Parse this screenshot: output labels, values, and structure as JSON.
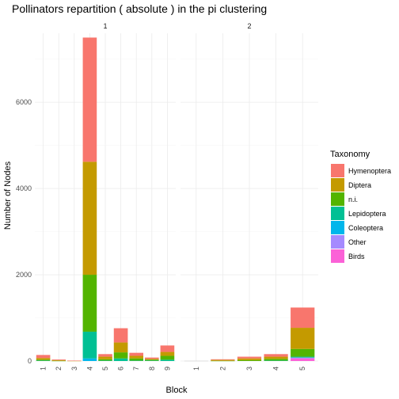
{
  "chart_data": {
    "type": "bar",
    "stacked": true,
    "title": "Pollinators repartition ( absolute ) in the pi clustering",
    "xlabel": "Block",
    "ylabel": "Number of Nodes",
    "ylim": [
      0,
      7600
    ],
    "yticks": [
      0,
      2000,
      4000,
      6000
    ],
    "grid": true,
    "legend": {
      "title": "Taxonomy",
      "placement": "right",
      "entries": [
        {
          "name": "Hymenoptera",
          "color": "#F8766D"
        },
        {
          "name": "Diptera",
          "color": "#C49A00"
        },
        {
          "name": "n.i.",
          "color": "#53B400"
        },
        {
          "name": "Lepidoptera",
          "color": "#00C094"
        },
        {
          "name": "Coleoptera",
          "color": "#00B6EB"
        },
        {
          "name": "Other",
          "color": "#A58AFF"
        },
        {
          "name": "Birds",
          "color": "#FB61D7"
        }
      ]
    },
    "series_order": [
      "Hymenoptera",
      "Diptera",
      "n.i.",
      "Lepidoptera",
      "Coleoptera",
      "Other",
      "Birds"
    ],
    "panels": [
      {
        "label": "1",
        "categories": [
          "1",
          "2",
          "3",
          "4",
          "5",
          "6",
          "7",
          "8",
          "9"
        ],
        "stacks": [
          {
            "Hymenoptera": 70,
            "Diptera": 40,
            "n.i.": 20,
            "Lepidoptera": 10,
            "Coleoptera": 0,
            "Other": 0,
            "Birds": 0
          },
          {
            "Hymenoptera": 15,
            "Diptera": 15,
            "n.i.": 5,
            "Lepidoptera": 0,
            "Coleoptera": 0,
            "Other": 0,
            "Birds": 0
          },
          {
            "Hymenoptera": 5,
            "Diptera": 5,
            "n.i.": 0,
            "Lepidoptera": 0,
            "Coleoptera": 0,
            "Other": 0,
            "Birds": 0
          },
          {
            "Hymenoptera": 2880,
            "Diptera": 2620,
            "n.i.": 1320,
            "Lepidoptera": 620,
            "Coleoptera": 60,
            "Other": 0,
            "Birds": 0
          },
          {
            "Hymenoptera": 60,
            "Diptera": 60,
            "n.i.": 30,
            "Lepidoptera": 10,
            "Coleoptera": 0,
            "Other": 0,
            "Birds": 0
          },
          {
            "Hymenoptera": 330,
            "Diptera": 230,
            "n.i.": 140,
            "Lepidoptera": 60,
            "Coleoptera": 0,
            "Other": 0,
            "Birds": 0
          },
          {
            "Hymenoptera": 70,
            "Diptera": 60,
            "n.i.": 50,
            "Lepidoptera": 10,
            "Coleoptera": 0,
            "Other": 0,
            "Birds": 0
          },
          {
            "Hymenoptera": 30,
            "Diptera": 20,
            "n.i.": 20,
            "Lepidoptera": 10,
            "Coleoptera": 0,
            "Other": 0,
            "Birds": 0
          },
          {
            "Hymenoptera": 150,
            "Diptera": 90,
            "n.i.": 90,
            "Lepidoptera": 30,
            "Coleoptera": 0,
            "Other": 0,
            "Birds": 0
          }
        ]
      },
      {
        "label": "2",
        "categories": [
          "1",
          "2",
          "3",
          "4",
          "5"
        ],
        "stacks": [
          {
            "Hymenoptera": 0,
            "Diptera": 0,
            "n.i.": 0,
            "Lepidoptera": 0,
            "Coleoptera": 0,
            "Other": 0,
            "Birds": 0
          },
          {
            "Hymenoptera": 15,
            "Diptera": 20,
            "n.i.": 5,
            "Lepidoptera": 0,
            "Coleoptera": 0,
            "Other": 0,
            "Birds": 0
          },
          {
            "Hymenoptera": 40,
            "Diptera": 40,
            "n.i.": 20,
            "Lepidoptera": 0,
            "Coleoptera": 0,
            "Other": 0,
            "Birds": 0
          },
          {
            "Hymenoptera": 60,
            "Diptera": 50,
            "n.i.": 40,
            "Lepidoptera": 10,
            "Coleoptera": 0,
            "Other": 0,
            "Birds": 0
          },
          {
            "Hymenoptera": 470,
            "Diptera": 490,
            "n.i.": 180,
            "Lepidoptera": 20,
            "Coleoptera": 0,
            "Other": 20,
            "Birds": 60
          }
        ]
      }
    ]
  }
}
